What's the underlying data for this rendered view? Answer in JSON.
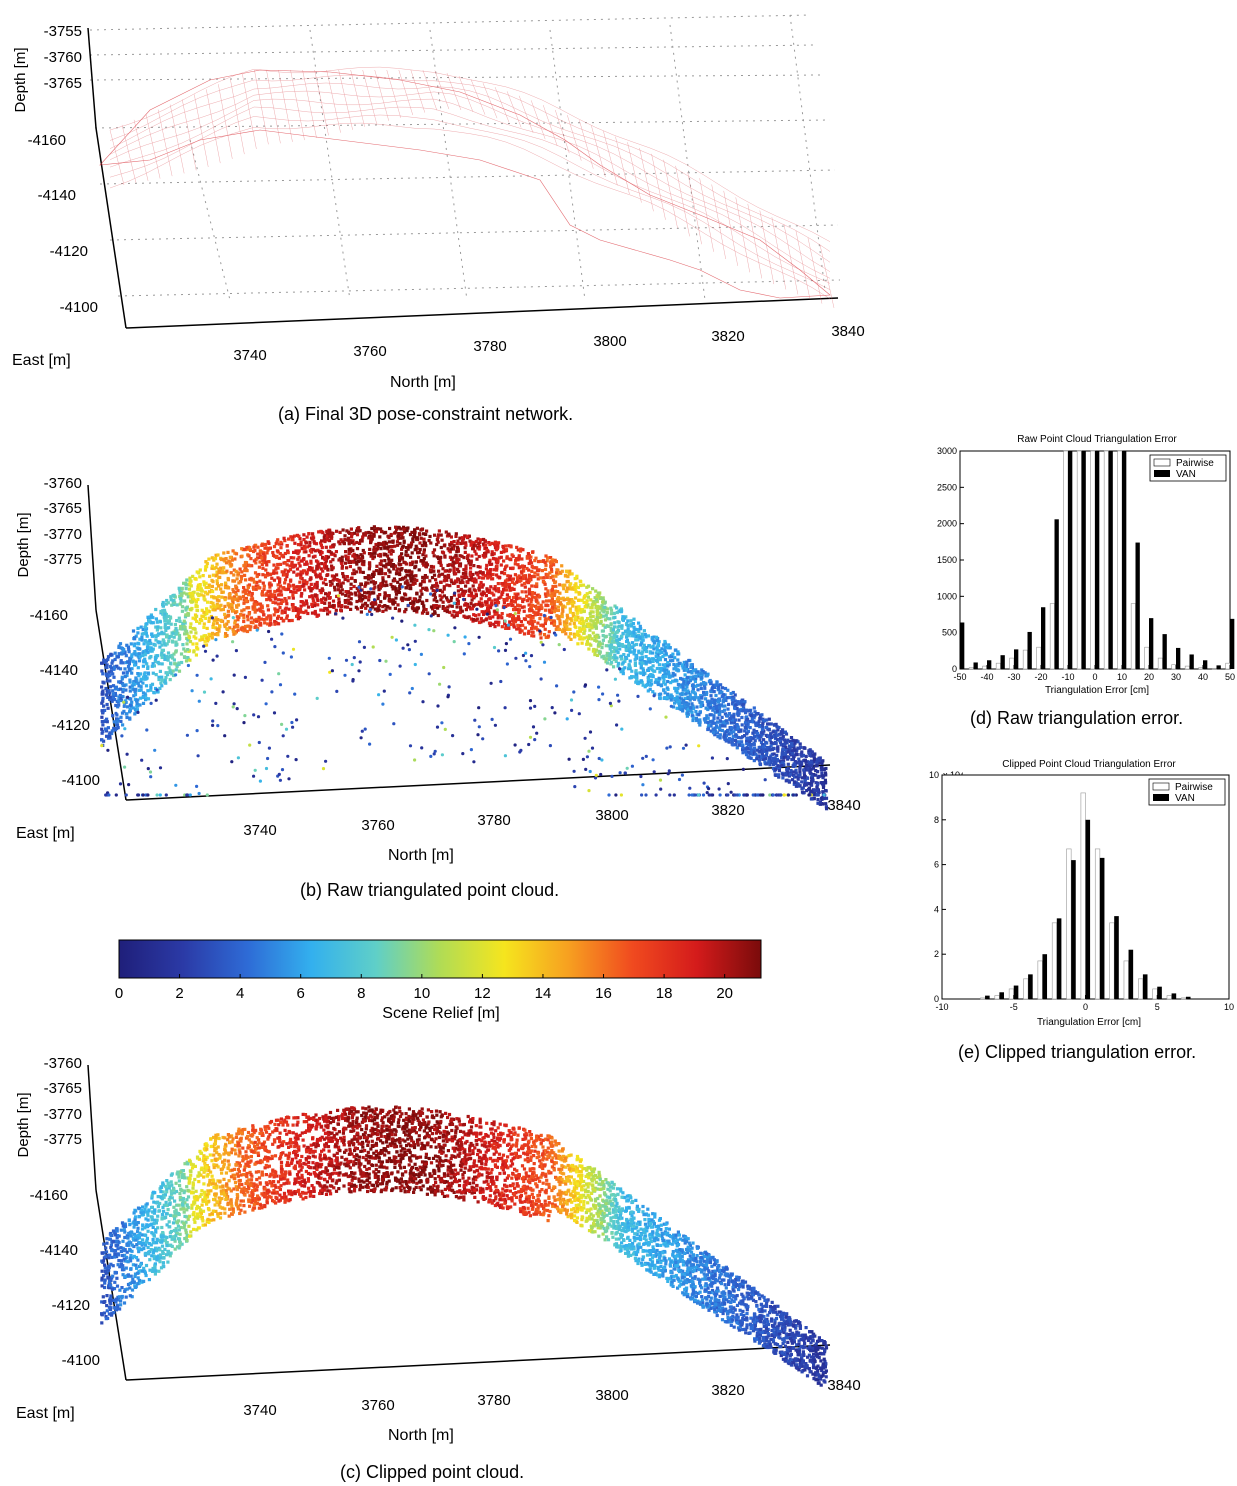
{
  "captions": {
    "a": "(a)  Final 3D pose-constraint network.",
    "b": "(b)  Raw triangulated point cloud.",
    "c": "(c)  Clipped point cloud.",
    "d": "(d)  Raw triangulation error.",
    "e": "(e)  Clipped triangulation error."
  },
  "colorbar": {
    "label": "Scene Relief [m]",
    "ticks": [
      "0",
      "2",
      "4",
      "6",
      "8",
      "10",
      "12",
      "14",
      "16",
      "18",
      "20"
    ],
    "colors": [
      "#1f1f7a",
      "#2b3aa6",
      "#2e6bd6",
      "#33b0ee",
      "#5fcfc8",
      "#b0dc55",
      "#f5e51e",
      "#f7a020",
      "#f04a1f",
      "#d41b1b",
      "#7a0b0b"
    ]
  },
  "chart_data": [
    {
      "id": "a",
      "type": "surface",
      "title": "",
      "xlabel": "North [m]",
      "ylabel": "East [m]",
      "zlabel": "Depth [m]",
      "north_ticks": [
        "3740",
        "3760",
        "3780",
        "3800",
        "3820",
        "3840"
      ],
      "east_ticks": [
        "-4100",
        "-4120",
        "-4140",
        "-4160"
      ],
      "depth_ticks": [
        "-3755",
        "-3760",
        "-3765"
      ],
      "color": "#d9363e"
    },
    {
      "id": "b",
      "type": "scatter",
      "title": "",
      "xlabel": "North [m]",
      "ylabel": "East [m]",
      "zlabel": "Depth [m]",
      "north_ticks": [
        "3740",
        "3760",
        "3780",
        "3800",
        "3820",
        "3840"
      ],
      "east_ticks": [
        "-4100",
        "-4120",
        "-4140",
        "-4160"
      ],
      "depth_ticks": [
        "-3760",
        "-3765",
        "-3770",
        "-3775"
      ]
    },
    {
      "id": "c",
      "type": "scatter",
      "title": "",
      "xlabel": "North [m]",
      "ylabel": "East [m]",
      "zlabel": "Depth [m]",
      "north_ticks": [
        "3740",
        "3760",
        "3780",
        "3800",
        "3820",
        "3840"
      ],
      "east_ticks": [
        "-4100",
        "-4120",
        "-4140",
        "-4160"
      ],
      "depth_ticks": [
        "-3760",
        "-3765",
        "-3770",
        "-3775"
      ]
    },
    {
      "id": "d",
      "type": "bar",
      "title": "Raw Point Cloud Triangulation Error",
      "xlabel": "Triangulation Error [cm]",
      "ylabel": "",
      "xlim": [
        -50,
        50
      ],
      "ylim": [
        0,
        3000
      ],
      "xticks": [
        "-50",
        "-40",
        "-30",
        "-20",
        "-10",
        "0",
        "10",
        "20",
        "30",
        "40",
        "50"
      ],
      "yticks": [
        "0",
        "500",
        "1000",
        "1500",
        "2000",
        "2500",
        "3000"
      ],
      "legend": "top-right",
      "x": [
        -50,
        -45,
        -40,
        -35,
        -30,
        -25,
        -20,
        -15,
        -10,
        -5,
        0,
        5,
        10,
        15,
        20,
        25,
        30,
        35,
        40,
        45,
        50
      ],
      "series": [
        {
          "name": "Pairwise",
          "values": [
            0,
            20,
            40,
            80,
            150,
            260,
            300,
            900,
            3000,
            3000,
            3000,
            3000,
            3000,
            900,
            300,
            150,
            60,
            40,
            20,
            10,
            80
          ]
        },
        {
          "name": "VAN",
          "values": [
            640,
            90,
            120,
            190,
            270,
            510,
            850,
            2060,
            3000,
            3000,
            3000,
            3000,
            3000,
            1740,
            700,
            480,
            290,
            200,
            120,
            50,
            690
          ]
        }
      ]
    },
    {
      "id": "e",
      "type": "bar",
      "title": "Clipped Point Cloud Triangulation Error",
      "xlabel": "Triangulation Error [cm]",
      "ylabel": "",
      "y_multiplier": "x 10⁴",
      "xlim": [
        -10,
        10
      ],
      "ylim": [
        0,
        10
      ],
      "xticks": [
        "-10",
        "-5",
        "0",
        "5",
        "10"
      ],
      "yticks": [
        "0",
        "2",
        "4",
        "6",
        "8",
        "10"
      ],
      "legend": "top-right",
      "x": [
        -7,
        -6,
        -5,
        -4,
        -3,
        -2,
        -1,
        0,
        1,
        2,
        3,
        4,
        5,
        6,
        7
      ],
      "series": [
        {
          "name": "Pairwise",
          "values": [
            0.05,
            0.15,
            0.45,
            0.9,
            1.7,
            3.4,
            6.7,
            9.2,
            6.7,
            3.4,
            1.7,
            0.9,
            0.45,
            0.15,
            0.05
          ]
        },
        {
          "name": "VAN",
          "values": [
            0.15,
            0.3,
            0.6,
            1.1,
            2.0,
            3.6,
            6.2,
            8.0,
            6.3,
            3.7,
            2.2,
            1.1,
            0.55,
            0.25,
            0.1
          ]
        }
      ]
    }
  ]
}
